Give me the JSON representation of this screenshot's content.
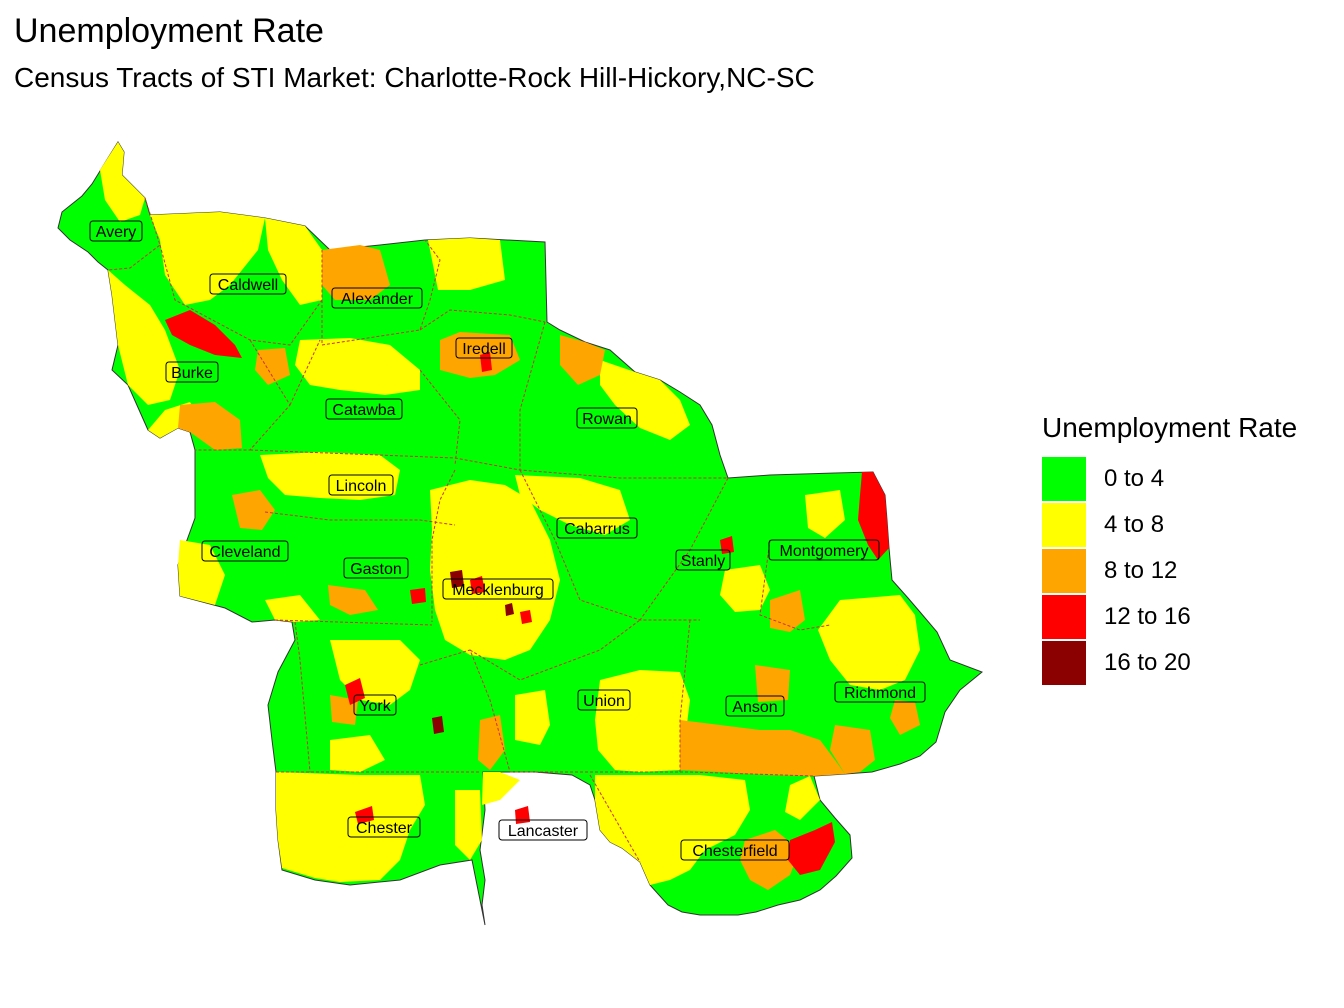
{
  "title": "Unemployment Rate",
  "subtitle": "Census Tracts of STI Market: Charlotte-Rock Hill-Hickory,NC-SC",
  "legend": {
    "title": "Unemployment Rate",
    "items": [
      {
        "label": "0 to 4",
        "color": "#00ff00"
      },
      {
        "label": "4 to 8",
        "color": "#ffff00"
      },
      {
        "label": "8 to 12",
        "color": "#ffa500"
      },
      {
        "label": "12 to 16",
        "color": "#ff0000"
      },
      {
        "label": "16 to 20",
        "color": "#8b0000"
      }
    ]
  },
  "counties": [
    "Avery",
    "Caldwell",
    "Alexander",
    "Iredell",
    "Burke",
    "Catawba",
    "Rowan",
    "Lincoln",
    "Cabarrus",
    "Cleveland",
    "Gaston",
    "Mecklenburg",
    "Stanly",
    "Montgomery",
    "Richmond",
    "Anson",
    "Union",
    "York",
    "Chester",
    "Lancaster",
    "Chesterfield"
  ],
  "colors": {
    "green": "#00ff00",
    "yellow": "#ffff00",
    "orange": "#ffa500",
    "red": "#ff0000",
    "darkred": "#8b0000",
    "boundary": "#cc3333"
  }
}
